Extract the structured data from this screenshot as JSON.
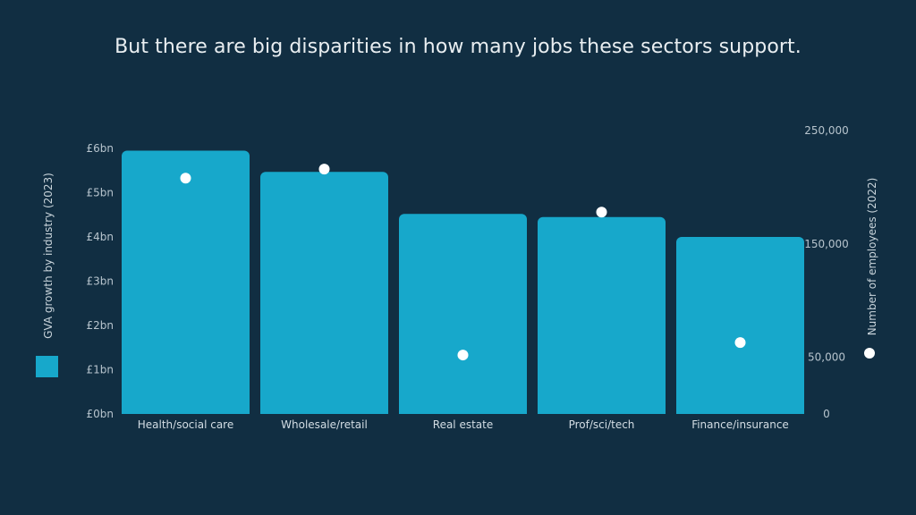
{
  "chart_data": {
    "type": "bar",
    "title": "But there are big disparities in how many jobs these sectors support.",
    "categories": [
      "Health/social care",
      "Wholesale/retail",
      "Real estate",
      "Prof/sci/tech",
      "Finance/insurance"
    ],
    "series": [
      {
        "name": "GVA growth by industry (2023)",
        "type": "bar",
        "axis": "left",
        "values": [
          5.95,
          5.47,
          4.52,
          4.45,
          4.0
        ],
        "color": "#17a8cb"
      },
      {
        "name": "Number of employees (2022)",
        "type": "scatter",
        "axis": "right",
        "values": [
          208000,
          216000,
          52000,
          178000,
          63000
        ],
        "color": "#ffffff"
      }
    ],
    "y_left": {
      "label": "GVA growth by industry (2023)",
      "ticks": [
        0,
        1,
        2,
        3,
        4,
        5,
        6
      ],
      "tick_labels": [
        "£0bn",
        "£1bn",
        "£2bn",
        "£3bn",
        "£4bn",
        "£5bn",
        "£6bn"
      ],
      "ylim": [
        0,
        6
      ]
    },
    "y_right": {
      "label": "Number of employees (2022)",
      "tick_labels": [
        "0",
        "50,000",
        "150,000",
        "250,000"
      ],
      "ticks": [
        0,
        50000,
        150000,
        250000
      ]
    },
    "legend": {
      "bar_label": "GVA growth by industry (2023)",
      "dot_label": "Number of employees (2022)"
    },
    "grid": false
  }
}
